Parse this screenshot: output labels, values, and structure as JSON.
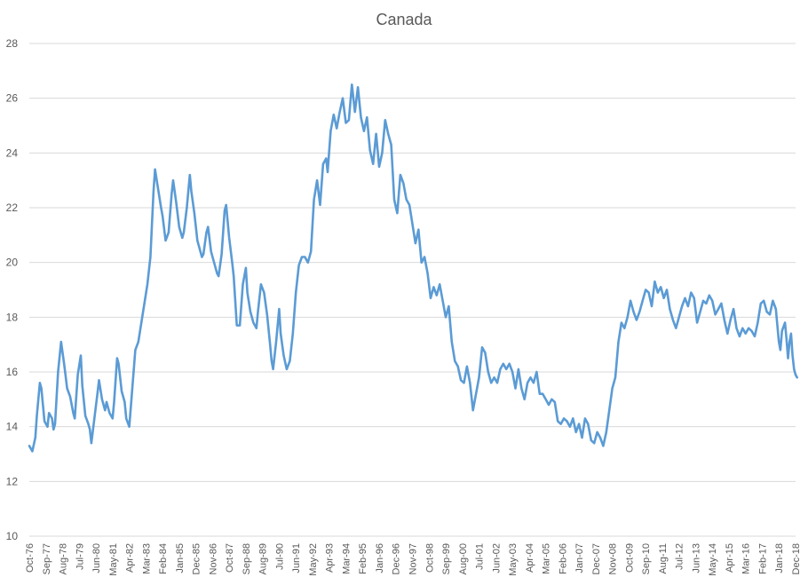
{
  "chart_data": {
    "type": "line",
    "title": "Canada",
    "xlabel": "",
    "ylabel": "",
    "ylim": [
      10,
      28
    ],
    "y_ticks": [
      10,
      12,
      14,
      16,
      18,
      20,
      22,
      24,
      26,
      28
    ],
    "x_range": [
      "Oct-76",
      "Dec-18"
    ],
    "x_tick_labels": [
      "Oct-76",
      "Sep-77",
      "Aug-78",
      "Jul-79",
      "Jun-80",
      "May-81",
      "Apr-82",
      "Mar-83",
      "Feb-84",
      "Jan-85",
      "Dec-85",
      "Nov-86",
      "Oct-87",
      "Sep-88",
      "Aug-89",
      "Jul-90",
      "Jun-91",
      "May-92",
      "Apr-93",
      "Mar-94",
      "Feb-95",
      "Jan-96",
      "Dec-96",
      "Nov-97",
      "Oct-98",
      "Sep-99",
      "Aug-00",
      "Jul-01",
      "Jun-02",
      "May-03",
      "Apr-04",
      "Mar-05",
      "Feb-06",
      "Jan-07",
      "Dec-07",
      "Nov-08",
      "Oct-09",
      "Sep-10",
      "Aug-11",
      "Jul-12",
      "Jun-13",
      "May-14",
      "Apr-15",
      "Mar-16",
      "Feb-17",
      "Jan-18",
      "Dec-18"
    ],
    "grid": true,
    "legend": "none",
    "series": [
      {
        "color": "#5b9bd5",
        "points": [
          [
            "1976-10",
            13.3
          ],
          [
            "1976-12",
            13.1
          ],
          [
            "1977-02",
            13.6
          ],
          [
            "1977-03",
            14.4
          ],
          [
            "1977-05",
            15.6
          ],
          [
            "1977-06",
            15.4
          ],
          [
            "1977-08",
            14.2
          ],
          [
            "1977-10",
            14.0
          ],
          [
            "1977-11",
            14.5
          ],
          [
            "1978-01",
            14.3
          ],
          [
            "1978-02",
            13.9
          ],
          [
            "1978-03",
            14.1
          ],
          [
            "1978-05",
            16.0
          ],
          [
            "1978-07",
            17.1
          ],
          [
            "1978-09",
            16.3
          ],
          [
            "1978-11",
            15.4
          ],
          [
            "1979-01",
            15.1
          ],
          [
            "1979-03",
            14.5
          ],
          [
            "1979-04",
            14.3
          ],
          [
            "1979-06",
            15.9
          ],
          [
            "1979-08",
            16.6
          ],
          [
            "1979-09",
            15.5
          ],
          [
            "1979-11",
            14.4
          ],
          [
            "1980-01",
            14.1
          ],
          [
            "1980-02",
            13.9
          ],
          [
            "1980-03",
            13.4
          ],
          [
            "1980-05",
            14.3
          ],
          [
            "1980-07",
            15.2
          ],
          [
            "1980-08",
            15.7
          ],
          [
            "1980-10",
            15.0
          ],
          [
            "1980-12",
            14.6
          ],
          [
            "1981-01",
            14.9
          ],
          [
            "1981-03",
            14.5
          ],
          [
            "1981-05",
            14.3
          ],
          [
            "1981-06",
            14.9
          ],
          [
            "1981-08",
            16.5
          ],
          [
            "1981-09",
            16.3
          ],
          [
            "1981-11",
            15.3
          ],
          [
            "1982-01",
            14.9
          ],
          [
            "1982-02",
            14.3
          ],
          [
            "1982-04",
            14.0
          ],
          [
            "1982-06",
            15.4
          ],
          [
            "1982-08",
            16.8
          ],
          [
            "1982-10",
            17.1
          ],
          [
            "1982-12",
            17.8
          ],
          [
            "1983-02",
            18.5
          ],
          [
            "1983-04",
            19.2
          ],
          [
            "1983-06",
            20.2
          ],
          [
            "1983-08",
            22.6
          ],
          [
            "1983-09",
            23.4
          ],
          [
            "1983-11",
            22.7
          ],
          [
            "1984-01",
            22.0
          ],
          [
            "1984-02",
            21.7
          ],
          [
            "1984-04",
            20.8
          ],
          [
            "1984-06",
            21.1
          ],
          [
            "1984-08",
            22.5
          ],
          [
            "1984-09",
            23.0
          ],
          [
            "1984-11",
            22.2
          ],
          [
            "1985-01",
            21.3
          ],
          [
            "1985-03",
            20.9
          ],
          [
            "1985-04",
            21.1
          ],
          [
            "1985-06",
            22.0
          ],
          [
            "1985-08",
            23.2
          ],
          [
            "1985-09",
            22.6
          ],
          [
            "1985-11",
            21.8
          ],
          [
            "1986-01",
            20.8
          ],
          [
            "1986-02",
            20.6
          ],
          [
            "1986-04",
            20.2
          ],
          [
            "1986-05",
            20.3
          ],
          [
            "1986-07",
            21.1
          ],
          [
            "1986-08",
            21.3
          ],
          [
            "1986-10",
            20.4
          ],
          [
            "1986-12",
            20.0
          ],
          [
            "1987-02",
            19.6
          ],
          [
            "1987-03",
            19.5
          ],
          [
            "1987-05",
            20.3
          ],
          [
            "1987-07",
            21.9
          ],
          [
            "1987-08",
            22.1
          ],
          [
            "1987-10",
            20.9
          ],
          [
            "1987-12",
            20.0
          ],
          [
            "1988-01",
            19.5
          ],
          [
            "1988-03",
            17.7
          ],
          [
            "1988-05",
            17.7
          ],
          [
            "1988-07",
            19.2
          ],
          [
            "1988-09",
            19.8
          ],
          [
            "1988-10",
            18.9
          ],
          [
            "1988-12",
            18.2
          ],
          [
            "1989-02",
            17.8
          ],
          [
            "1989-04",
            17.6
          ],
          [
            "1989-05",
            18.2
          ],
          [
            "1989-07",
            19.2
          ],
          [
            "1989-09",
            18.9
          ],
          [
            "1989-11",
            18.1
          ],
          [
            "1990-01",
            17.0
          ],
          [
            "1990-02",
            16.4
          ],
          [
            "1990-03",
            16.1
          ],
          [
            "1990-05",
            17.1
          ],
          [
            "1990-07",
            18.3
          ],
          [
            "1990-08",
            17.4
          ],
          [
            "1990-10",
            16.6
          ],
          [
            "1990-12",
            16.1
          ],
          [
            "1991-02",
            16.4
          ],
          [
            "1991-04",
            17.4
          ],
          [
            "1991-06",
            18.9
          ],
          [
            "1991-08",
            19.9
          ],
          [
            "1991-10",
            20.2
          ],
          [
            "1991-12",
            20.2
          ],
          [
            "1992-02",
            20.0
          ],
          [
            "1992-04",
            20.4
          ],
          [
            "1992-06",
            22.3
          ],
          [
            "1992-08",
            23.0
          ],
          [
            "1992-10",
            22.1
          ],
          [
            "1992-12",
            23.6
          ],
          [
            "1993-02",
            23.8
          ],
          [
            "1993-03",
            23.3
          ],
          [
            "1993-05",
            24.8
          ],
          [
            "1993-07",
            25.4
          ],
          [
            "1993-09",
            24.9
          ],
          [
            "1993-11",
            25.5
          ],
          [
            "1994-01",
            26.0
          ],
          [
            "1994-03",
            25.1
          ],
          [
            "1994-05",
            25.2
          ],
          [
            "1994-07",
            26.5
          ],
          [
            "1994-09",
            25.5
          ],
          [
            "1994-11",
            26.4
          ],
          [
            "1995-01",
            25.3
          ],
          [
            "1995-03",
            24.8
          ],
          [
            "1995-05",
            25.3
          ],
          [
            "1995-07",
            24.1
          ],
          [
            "1995-09",
            23.6
          ],
          [
            "1995-11",
            24.7
          ],
          [
            "1996-01",
            23.5
          ],
          [
            "1996-03",
            24.0
          ],
          [
            "1996-05",
            25.2
          ],
          [
            "1996-07",
            24.7
          ],
          [
            "1996-09",
            24.3
          ],
          [
            "1996-11",
            22.3
          ],
          [
            "1997-01",
            21.8
          ],
          [
            "1997-03",
            23.2
          ],
          [
            "1997-05",
            22.9
          ],
          [
            "1997-07",
            22.3
          ],
          [
            "1997-09",
            22.1
          ],
          [
            "1997-11",
            21.4
          ],
          [
            "1998-01",
            20.7
          ],
          [
            "1998-03",
            21.2
          ],
          [
            "1998-05",
            20.0
          ],
          [
            "1998-07",
            20.2
          ],
          [
            "1998-09",
            19.6
          ],
          [
            "1998-11",
            18.7
          ],
          [
            "1999-01",
            19.1
          ],
          [
            "1999-03",
            18.8
          ],
          [
            "1999-05",
            19.2
          ],
          [
            "1999-07",
            18.6
          ],
          [
            "1999-09",
            18.0
          ],
          [
            "1999-11",
            18.4
          ],
          [
            "2000-01",
            17.1
          ],
          [
            "2000-03",
            16.4
          ],
          [
            "2000-05",
            16.2
          ],
          [
            "2000-07",
            15.7
          ],
          [
            "2000-09",
            15.6
          ],
          [
            "2000-11",
            16.2
          ],
          [
            "2001-01",
            15.6
          ],
          [
            "2001-03",
            14.6
          ],
          [
            "2001-05",
            15.2
          ],
          [
            "2001-07",
            15.8
          ],
          [
            "2001-09",
            16.9
          ],
          [
            "2001-11",
            16.7
          ],
          [
            "2002-01",
            16.0
          ],
          [
            "2002-03",
            15.6
          ],
          [
            "2002-05",
            15.8
          ],
          [
            "2002-07",
            15.6
          ],
          [
            "2002-09",
            16.1
          ],
          [
            "2002-11",
            16.3
          ],
          [
            "2003-01",
            16.1
          ],
          [
            "2003-03",
            16.3
          ],
          [
            "2003-05",
            16.0
          ],
          [
            "2003-07",
            15.4
          ],
          [
            "2003-09",
            16.1
          ],
          [
            "2003-11",
            15.4
          ],
          [
            "2004-01",
            15.0
          ],
          [
            "2004-03",
            15.6
          ],
          [
            "2004-05",
            15.8
          ],
          [
            "2004-07",
            15.6
          ],
          [
            "2004-09",
            16.0
          ],
          [
            "2004-11",
            15.2
          ],
          [
            "2005-01",
            15.2
          ],
          [
            "2005-03",
            15.0
          ],
          [
            "2005-05",
            14.8
          ],
          [
            "2005-07",
            15.0
          ],
          [
            "2005-09",
            14.9
          ],
          [
            "2005-11",
            14.2
          ],
          [
            "2006-01",
            14.1
          ],
          [
            "2006-03",
            14.3
          ],
          [
            "2006-05",
            14.2
          ],
          [
            "2006-07",
            14.0
          ],
          [
            "2006-09",
            14.3
          ],
          [
            "2006-11",
            13.8
          ],
          [
            "2007-01",
            14.1
          ],
          [
            "2007-03",
            13.6
          ],
          [
            "2007-05",
            14.3
          ],
          [
            "2007-07",
            14.1
          ],
          [
            "2007-09",
            13.5
          ],
          [
            "2007-11",
            13.4
          ],
          [
            "2008-01",
            13.8
          ],
          [
            "2008-03",
            13.6
          ],
          [
            "2008-05",
            13.3
          ],
          [
            "2008-07",
            13.8
          ],
          [
            "2008-09",
            14.6
          ],
          [
            "2008-11",
            15.4
          ],
          [
            "2009-01",
            15.8
          ],
          [
            "2009-03",
            17.1
          ],
          [
            "2009-05",
            17.8
          ],
          [
            "2009-07",
            17.6
          ],
          [
            "2009-09",
            18.0
          ],
          [
            "2009-11",
            18.6
          ],
          [
            "2010-01",
            18.2
          ],
          [
            "2010-03",
            17.9
          ],
          [
            "2010-05",
            18.2
          ],
          [
            "2010-07",
            18.6
          ],
          [
            "2010-09",
            19.0
          ],
          [
            "2010-11",
            18.9
          ],
          [
            "2011-01",
            18.4
          ],
          [
            "2011-03",
            19.3
          ],
          [
            "2011-05",
            18.9
          ],
          [
            "2011-07",
            19.1
          ],
          [
            "2011-09",
            18.7
          ],
          [
            "2011-11",
            19.0
          ],
          [
            "2012-01",
            18.3
          ],
          [
            "2012-03",
            17.9
          ],
          [
            "2012-05",
            17.6
          ],
          [
            "2012-07",
            18.0
          ],
          [
            "2012-09",
            18.4
          ],
          [
            "2012-11",
            18.7
          ],
          [
            "2013-01",
            18.4
          ],
          [
            "2013-03",
            18.9
          ],
          [
            "2013-05",
            18.7
          ],
          [
            "2013-07",
            17.8
          ],
          [
            "2013-09",
            18.2
          ],
          [
            "2013-11",
            18.6
          ],
          [
            "2014-01",
            18.5
          ],
          [
            "2014-03",
            18.8
          ],
          [
            "2014-05",
            18.6
          ],
          [
            "2014-07",
            18.1
          ],
          [
            "2014-09",
            18.3
          ],
          [
            "2014-11",
            18.5
          ],
          [
            "2015-01",
            17.9
          ],
          [
            "2015-03",
            17.4
          ],
          [
            "2015-05",
            17.9
          ],
          [
            "2015-07",
            18.3
          ],
          [
            "2015-09",
            17.6
          ],
          [
            "2015-11",
            17.3
          ],
          [
            "2016-01",
            17.6
          ],
          [
            "2016-03",
            17.4
          ],
          [
            "2016-05",
            17.6
          ],
          [
            "2016-07",
            17.5
          ],
          [
            "2016-09",
            17.3
          ],
          [
            "2016-11",
            17.8
          ],
          [
            "2017-01",
            18.5
          ],
          [
            "2017-03",
            18.6
          ],
          [
            "2017-05",
            18.2
          ],
          [
            "2017-07",
            18.1
          ],
          [
            "2017-09",
            18.6
          ],
          [
            "2017-11",
            18.3
          ],
          [
            "2018-01",
            17.1
          ],
          [
            "2018-02",
            16.8
          ],
          [
            "2018-03",
            17.5
          ],
          [
            "2018-05",
            17.8
          ],
          [
            "2018-06",
            17.2
          ],
          [
            "2018-07",
            16.5
          ],
          [
            "2018-08",
            17.1
          ],
          [
            "2018-09",
            17.4
          ],
          [
            "2018-10",
            16.6
          ],
          [
            "2018-11",
            16.1
          ],
          [
            "2018-12",
            15.9
          ],
          [
            "2019-01",
            15.8
          ]
        ]
      }
    ]
  }
}
